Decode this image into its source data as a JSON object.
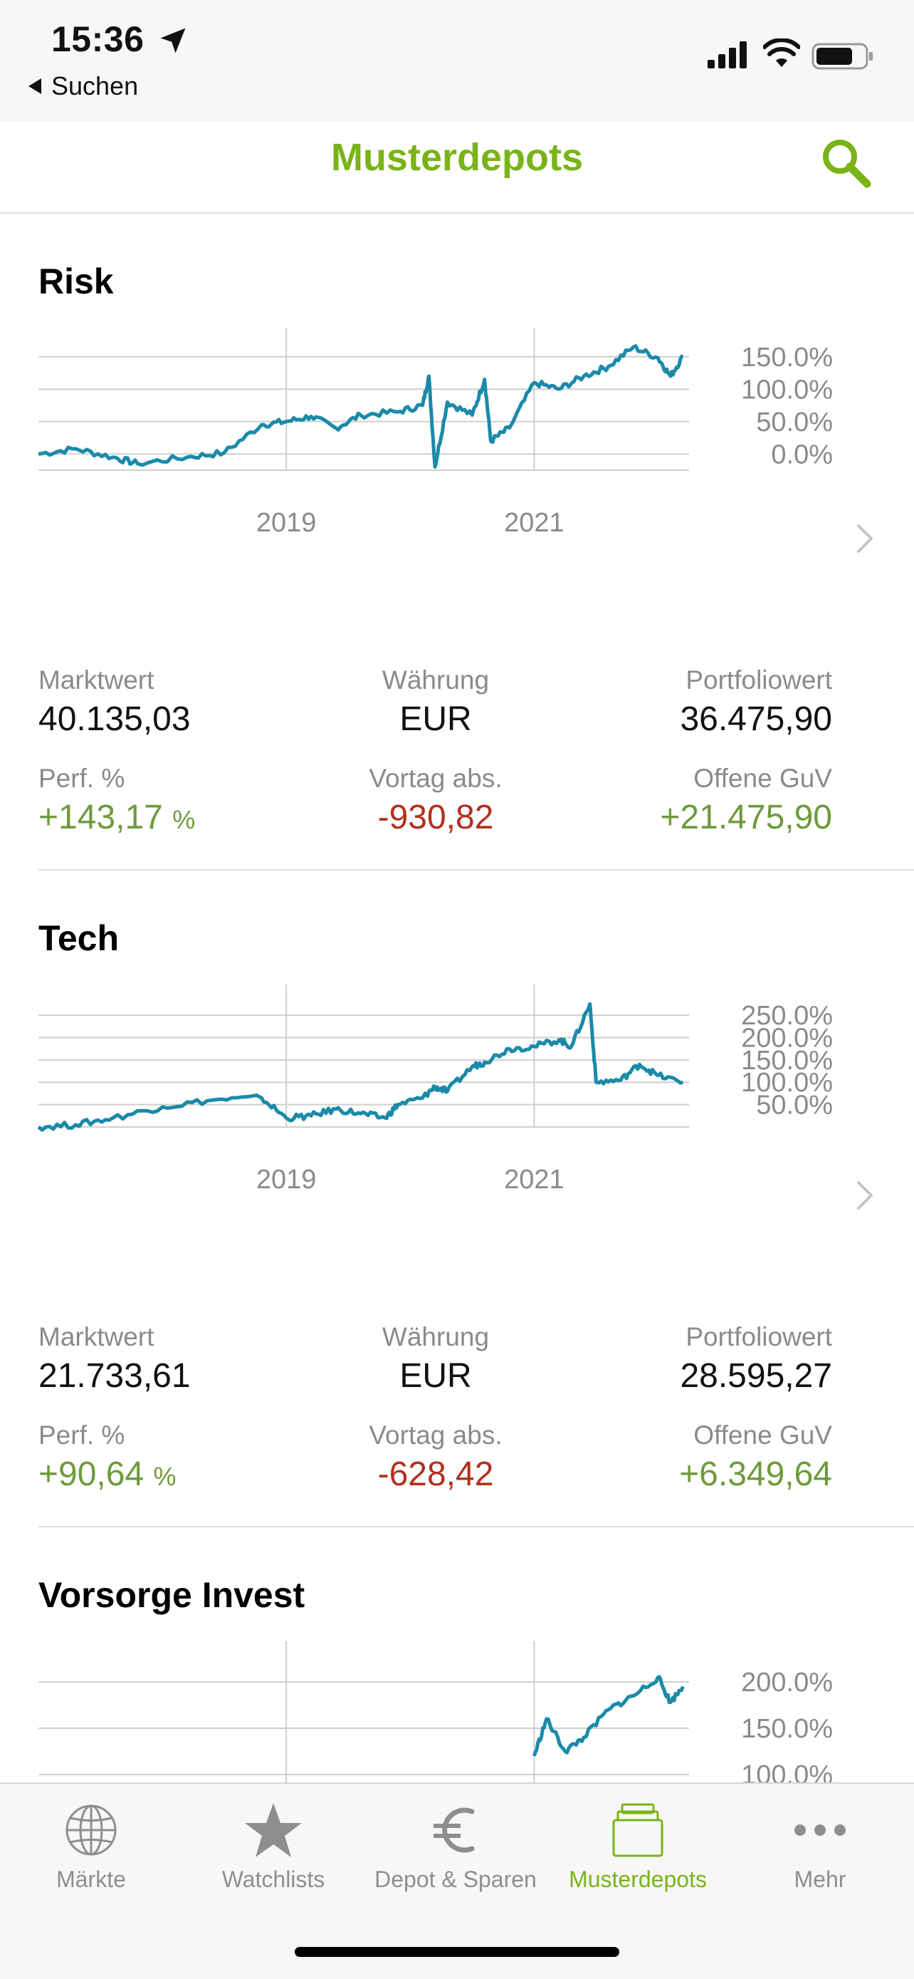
{
  "status": {
    "time": "15:36",
    "back_label": "Suchen"
  },
  "nav": {
    "title": "Musterdepots"
  },
  "colors": {
    "accent": "#7ab317",
    "chart_line": "#1a8aa8",
    "positive": "#6f9a3c",
    "negative": "#b3301d",
    "grid": "#cfcfcf",
    "axis_text": "#8a8a8a"
  },
  "labels": {
    "marktwert": "Marktwert",
    "waehrung": "Währung",
    "portfoliowert": "Portfoliowert",
    "perf": "Perf. %",
    "vortag": "Vortag abs.",
    "offene_guv": "Offene GuV",
    "pct_unit": "%"
  },
  "portfolios": [
    {
      "name": "Risk",
      "marktwert": "40.135,03",
      "waehrung": "EUR",
      "portfoliowert": "36.475,90",
      "perf": "+143,17",
      "vortag": "-930,82",
      "offene_guv": "+21.475,90"
    },
    {
      "name": "Tech",
      "marktwert": "21.733,61",
      "waehrung": "EUR",
      "portfoliowert": "28.595,27",
      "perf": "+90,64",
      "vortag": "-628,42",
      "offene_guv": "+6.349,64"
    },
    {
      "name": "Vorsorge Invest"
    }
  ],
  "chart_data": [
    {
      "type": "line",
      "series": [
        {
          "values": [
            [
              2017.0,
              0
            ],
            [
              2017.3,
              8
            ],
            [
              2017.6,
              -5
            ],
            [
              2017.8,
              -15
            ],
            [
              2018.2,
              -5
            ],
            [
              2018.5,
              2
            ],
            [
              2018.8,
              45
            ],
            [
              2019.0,
              50
            ],
            [
              2019.2,
              58
            ],
            [
              2019.4,
              40
            ],
            [
              2019.6,
              60
            ],
            [
              2019.9,
              65
            ],
            [
              2020.1,
              75
            ],
            [
              2020.15,
              120
            ],
            [
              2020.2,
              -20
            ],
            [
              2020.3,
              80
            ],
            [
              2020.5,
              60
            ],
            [
              2020.6,
              115
            ],
            [
              2020.65,
              20
            ],
            [
              2020.8,
              40
            ],
            [
              2021.0,
              110
            ],
            [
              2021.2,
              100
            ],
            [
              2021.4,
              120
            ],
            [
              2021.6,
              135
            ],
            [
              2021.8,
              165
            ],
            [
              2022.0,
              148
            ],
            [
              2022.1,
              120
            ],
            [
              2022.2,
              150
            ]
          ]
        }
      ],
      "yticks": [
        "150.0%",
        "100.0%",
        "50.0%",
        "0.0%"
      ],
      "xticks": [
        "2019",
        "2021"
      ],
      "ylim": [
        -25,
        175
      ],
      "xlim": [
        2017.0,
        2022.25
      ],
      "grid": true
    },
    {
      "type": "line",
      "series": [
        {
          "values": [
            [
              2017.0,
              0
            ],
            [
              2017.3,
              5
            ],
            [
              2017.6,
              20
            ],
            [
              2018.0,
              45
            ],
            [
              2018.4,
              60
            ],
            [
              2018.8,
              65
            ],
            [
              2019.0,
              20
            ],
            [
              2019.2,
              25
            ],
            [
              2019.4,
              40
            ],
            [
              2019.6,
              30
            ],
            [
              2019.8,
              20
            ],
            [
              2019.9,
              50
            ],
            [
              2020.1,
              65
            ],
            [
              2020.2,
              90
            ],
            [
              2020.3,
              80
            ],
            [
              2020.5,
              135
            ],
            [
              2020.6,
              145
            ],
            [
              2020.8,
              175
            ],
            [
              2021.0,
              180
            ],
            [
              2021.2,
              195
            ],
            [
              2021.3,
              180
            ],
            [
              2021.45,
              275
            ],
            [
              2021.5,
              100
            ],
            [
              2021.7,
              105
            ],
            [
              2021.85,
              140
            ],
            [
              2022.0,
              115
            ],
            [
              2022.2,
              100
            ]
          ]
        }
      ],
      "yticks": [
        "250.0%",
        "200.0%",
        "150.0%",
        "100.0%",
        "50.0%"
      ],
      "xticks": [
        "2019",
        "2021"
      ],
      "ylim": [
        0,
        290
      ],
      "xlim": [
        2017.0,
        2022.25
      ],
      "grid": true
    },
    {
      "type": "line",
      "series": [
        {
          "values": [
            [
              2021.0,
              120
            ],
            [
              2021.1,
              160
            ],
            [
              2021.25,
              125
            ],
            [
              2021.4,
              140
            ],
            [
              2021.6,
              170
            ],
            [
              2021.8,
              185
            ],
            [
              2022.0,
              205
            ],
            [
              2022.1,
              178
            ],
            [
              2022.2,
              195
            ]
          ]
        }
      ],
      "yticks": [
        "200.0%",
        "150.0%",
        "100.0%"
      ],
      "xticks": [],
      "ylim": [
        90,
        230
      ],
      "xlim": [
        2017.0,
        2022.25
      ],
      "grid": true
    }
  ],
  "tabs": [
    {
      "label": "Märkte",
      "icon": "globe-icon",
      "active": false
    },
    {
      "label": "Watchlists",
      "icon": "star-icon",
      "active": false
    },
    {
      "label": "Depot & Sparen",
      "icon": "euro-icon",
      "active": false
    },
    {
      "label": "Musterdepots",
      "icon": "portfolio-stack-icon",
      "active": true
    },
    {
      "label": "Mehr",
      "icon": "more-dots-icon",
      "active": false
    }
  ]
}
